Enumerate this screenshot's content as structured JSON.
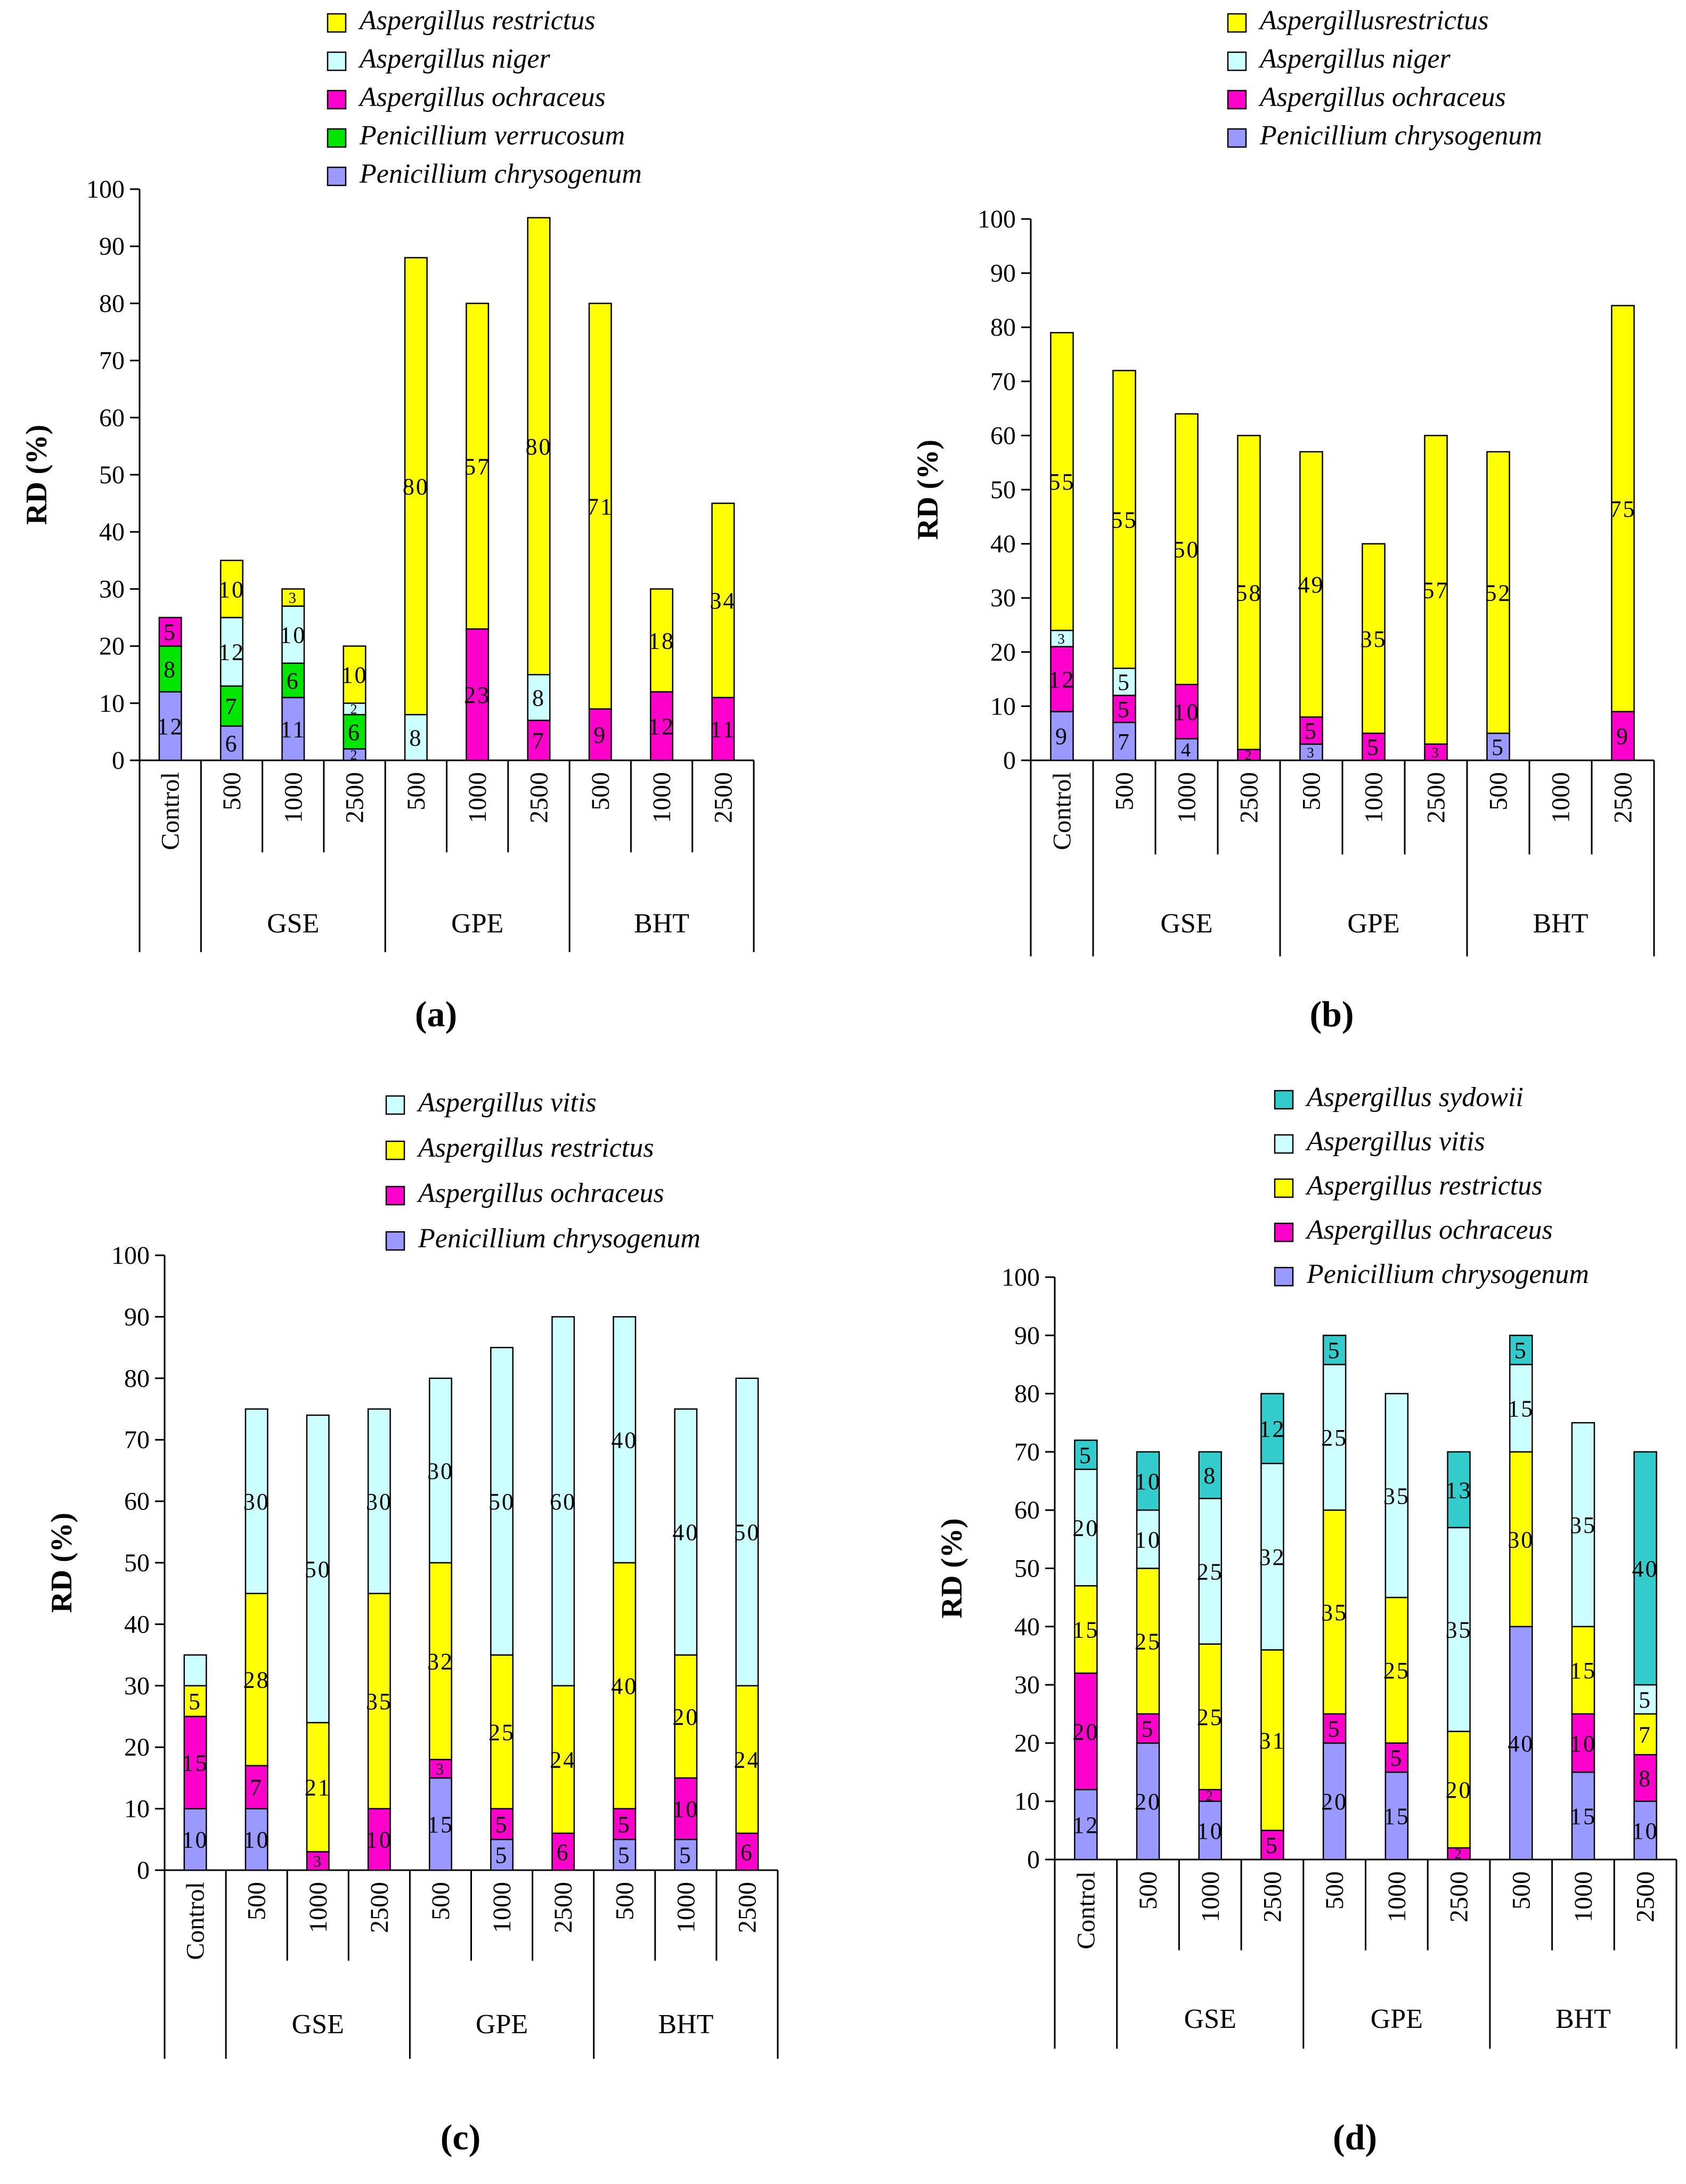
{
  "colors": {
    "Penicillium chrysogenum": "#9999ff",
    "Penicillium verrucosum": "#00e600",
    "Aspergillus ochraceus": "#ff00cc",
    "Aspergillus niger": "#ccffff",
    "Aspergillus restrictus": "#ffff00",
    "Aspergillus vitis": "#ccffff",
    "Aspergillus sydowii": "#33cccc",
    "axis": "#000000"
  },
  "chart_data": [
    {
      "panel": "(a)",
      "type": "bar",
      "stacked": true,
      "ylabel": "RD (%)",
      "ylim": [
        0,
        100
      ],
      "yticks": [
        0,
        10,
        20,
        30,
        40,
        50,
        60,
        70,
        80,
        90,
        100
      ],
      "categories": [
        "Control",
        "500",
        "1000",
        "2500",
        "500",
        "1000",
        "2500",
        "500",
        "1000",
        "2500"
      ],
      "groups": [
        {
          "label": "GSE",
          "span": [
            1,
            3
          ]
        },
        {
          "label": "GPE",
          "span": [
            4,
            6
          ]
        },
        {
          "label": "BHT",
          "span": [
            7,
            9
          ]
        }
      ],
      "legend": [
        "Aspergillus restrictus",
        "Aspergillus niger",
        "Aspergillus ochraceus",
        "Penicillium verrucosum",
        "Penicillium chrysogenum"
      ],
      "series": [
        {
          "name": "Penicillium chrysogenum",
          "color": "#9999ff",
          "values": [
            12,
            6,
            11,
            2,
            0,
            0,
            0,
            0,
            0,
            0
          ],
          "labels": [
            "12",
            "6",
            "11",
            "2",
            "",
            "",
            "",
            "",
            "",
            ""
          ]
        },
        {
          "name": "Penicillium verrucosum",
          "color": "#00e600",
          "values": [
            8,
            7,
            6,
            6,
            0,
            0,
            0,
            0,
            0,
            0
          ],
          "labels": [
            "8",
            "7",
            "6",
            "6",
            "",
            "",
            "",
            "",
            "",
            ""
          ]
        },
        {
          "name": "Aspergillus ochraceus",
          "color": "#ff00cc",
          "values": [
            5,
            0,
            0,
            0,
            0,
            23,
            7,
            9,
            12,
            11
          ],
          "labels": [
            "5",
            "",
            "",
            "",
            "",
            "23",
            "7",
            "9",
            "12",
            "11"
          ]
        },
        {
          "name": "Aspergillus niger",
          "color": "#ccffff",
          "values": [
            0,
            12,
            10,
            2,
            8,
            0,
            8,
            0,
            0,
            0
          ],
          "labels": [
            "",
            "12",
            "10",
            "2",
            "8",
            "",
            "8",
            "",
            "",
            ""
          ]
        },
        {
          "name": "Aspergillus restrictus",
          "color": "#ffff00",
          "values": [
            0,
            10,
            3,
            10,
            80,
            57,
            80,
            71,
            18,
            34
          ],
          "labels": [
            "",
            "10",
            "3",
            "10",
            "80",
            "57",
            "80",
            "71",
            "18",
            "34"
          ]
        }
      ]
    },
    {
      "panel": "(b)",
      "type": "bar",
      "stacked": true,
      "ylabel": "RD (%)",
      "ylim": [
        0,
        100
      ],
      "yticks": [
        0,
        10,
        20,
        30,
        40,
        50,
        60,
        70,
        80,
        90,
        100
      ],
      "categories": [
        "Control",
        "500",
        "1000",
        "2500",
        "500",
        "1000",
        "2500",
        "500",
        "1000",
        "2500"
      ],
      "groups": [
        {
          "label": "GSE",
          "span": [
            1,
            3
          ]
        },
        {
          "label": "GPE",
          "span": [
            4,
            6
          ]
        },
        {
          "label": "BHT",
          "span": [
            7,
            9
          ]
        }
      ],
      "legend": [
        "Aspergillusrestrictus",
        "Aspergillus niger",
        "Aspergillus ochraceus",
        "Penicillium  chrysogenum"
      ],
      "series": [
        {
          "name": "Penicillium  chrysogenum",
          "color": "#9999ff",
          "values": [
            9,
            7,
            4,
            0,
            3,
            0,
            0,
            5,
            0,
            0
          ],
          "labels": [
            "9",
            "7",
            "4",
            "",
            "3",
            "",
            "",
            "5",
            "",
            ""
          ]
        },
        {
          "name": "Aspergillus ochraceus",
          "color": "#ff00cc",
          "values": [
            12,
            5,
            10,
            2,
            5,
            5,
            3,
            0,
            0,
            9
          ],
          "labels": [
            "12",
            "5",
            "10",
            "2",
            "5",
            "5",
            "3",
            "",
            "",
            "9"
          ]
        },
        {
          "name": "Aspergillus niger",
          "color": "#ccffff",
          "values": [
            3,
            5,
            0,
            0,
            0,
            0,
            0,
            0,
            0,
            0
          ],
          "labels": [
            "3",
            "5",
            "",
            "",
            "",
            "",
            "",
            "",
            "",
            ""
          ]
        },
        {
          "name": "Aspergillusrestrictus",
          "color": "#ffff00",
          "values": [
            55,
            55,
            50,
            58,
            49,
            35,
            57,
            52,
            0,
            75
          ],
          "labels": [
            "55",
            "55",
            "50",
            "58",
            "49",
            "35",
            "57",
            "52",
            "",
            "75"
          ]
        }
      ]
    },
    {
      "panel": "(c)",
      "type": "bar",
      "stacked": true,
      "ylabel": "RD (%)",
      "ylim": [
        0,
        100
      ],
      "yticks": [
        0,
        10,
        20,
        30,
        40,
        50,
        60,
        70,
        80,
        90,
        100
      ],
      "categories": [
        "Control",
        "500",
        "1000",
        "2500",
        "500",
        "1000",
        "2500",
        "500",
        "1000",
        "2500"
      ],
      "groups": [
        {
          "label": "GSE",
          "span": [
            1,
            3
          ]
        },
        {
          "label": "GPE",
          "span": [
            4,
            6
          ]
        },
        {
          "label": "BHT",
          "span": [
            7,
            9
          ]
        }
      ],
      "legend": [
        "Aspergillus  vitis",
        "Aspergillus restrictus",
        "Aspergillus ochraceus",
        "Penicillium chrysogenum"
      ],
      "series": [
        {
          "name": "Penicillium chrysogenum",
          "color": "#9999ff",
          "values": [
            10,
            10,
            0,
            0,
            15,
            5,
            0,
            5,
            5,
            0
          ],
          "labels": [
            "10",
            "10",
            "",
            "",
            "15",
            "5",
            "",
            "5",
            "5",
            ""
          ]
        },
        {
          "name": "Aspergillus ochraceus",
          "color": "#ff00cc",
          "values": [
            15,
            7,
            3,
            10,
            3,
            5,
            6,
            5,
            10,
            6
          ],
          "labels": [
            "15",
            "7",
            "3",
            "10",
            "3",
            "5",
            "6",
            "5",
            "10",
            "6"
          ]
        },
        {
          "name": "Aspergillus restrictus",
          "color": "#ffff00",
          "values": [
            5,
            28,
            21,
            35,
            32,
            25,
            24,
            40,
            20,
            24
          ],
          "labels": [
            "5",
            "28",
            "21",
            "35",
            "32",
            "25",
            "24",
            "40",
            "20",
            "24"
          ]
        },
        {
          "name": "Aspergillus  vitis",
          "color": "#ccffff",
          "values": [
            5,
            30,
            50,
            30,
            30,
            50,
            60,
            40,
            40,
            50
          ],
          "labels": [
            "",
            "30",
            "50",
            "30",
            "30",
            "50",
            "60",
            "40",
            "40",
            "50"
          ]
        }
      ]
    },
    {
      "panel": "(d)",
      "type": "bar",
      "stacked": true,
      "ylabel": "RD (%)",
      "ylim": [
        0,
        100
      ],
      "yticks": [
        0,
        10,
        20,
        30,
        40,
        50,
        60,
        70,
        80,
        90,
        100
      ],
      "categories": [
        "Control",
        "500",
        "1000",
        "2500",
        "500",
        "1000",
        "2500",
        "500",
        "1000",
        "2500"
      ],
      "groups": [
        {
          "label": "GSE",
          "span": [
            1,
            3
          ]
        },
        {
          "label": "GPE",
          "span": [
            4,
            6
          ]
        },
        {
          "label": "BHT",
          "span": [
            7,
            9
          ]
        }
      ],
      "legend": [
        "Aspergillus sydowii",
        "Aspergillus vitis",
        "Aspergillus restrictus",
        "Aspergillus  ochraceus",
        "Penicillium chrysogenum"
      ],
      "series": [
        {
          "name": "Penicillium chrysogenum",
          "color": "#9999ff",
          "values": [
            12,
            20,
            10,
            0,
            20,
            15,
            0,
            40,
            15,
            10
          ],
          "labels": [
            "12",
            "20",
            "10",
            "",
            "20",
            "15",
            "",
            "40",
            "15",
            "10"
          ]
        },
        {
          "name": "Aspergillus  ochraceus",
          "color": "#ff00cc",
          "values": [
            20,
            5,
            2,
            5,
            5,
            5,
            2,
            0,
            10,
            8
          ],
          "labels": [
            "20",
            "5",
            "2",
            "5",
            "5",
            "5",
            "2",
            "",
            "10",
            "8"
          ]
        },
        {
          "name": "Aspergillus restrictus",
          "color": "#ffff00",
          "values": [
            15,
            25,
            25,
            31,
            35,
            25,
            20,
            30,
            15,
            7
          ],
          "labels": [
            "15",
            "25",
            "25",
            "31",
            "35",
            "25",
            "20",
            "30",
            "15",
            "7"
          ]
        },
        {
          "name": "Aspergillus vitis",
          "color": "#ccffff",
          "values": [
            20,
            10,
            25,
            32,
            25,
            35,
            35,
            15,
            35,
            5
          ],
          "labels": [
            "20",
            "10",
            "25",
            "32",
            "25",
            "35",
            "35",
            "15",
            "35",
            "5"
          ]
        },
        {
          "name": "Aspergillus sydowii",
          "color": "#33cccc",
          "values": [
            5,
            10,
            8,
            12,
            5,
            0,
            13,
            5,
            0,
            40
          ],
          "labels": [
            "5",
            "10",
            "8",
            "12",
            "5",
            "",
            "13",
            "5",
            "",
            "40"
          ]
        }
      ]
    }
  ]
}
